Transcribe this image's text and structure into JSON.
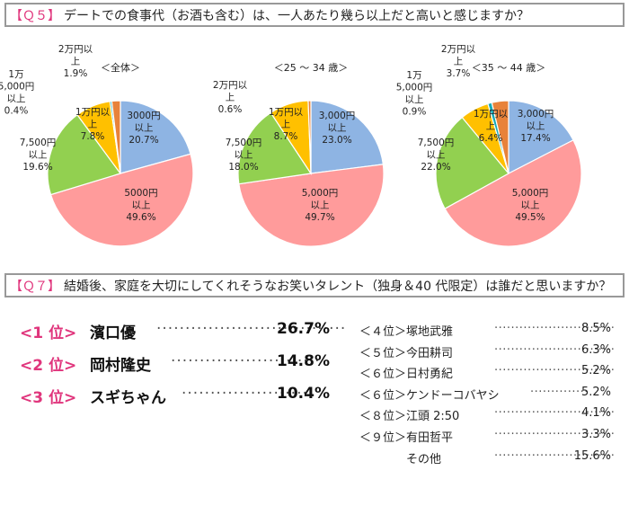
{
  "q5": {
    "qnum": "【Ｑ５】",
    "question": "デートでの食事代（お酒も含む）は、一人あたり幾ら以上だと高いと感じますか？"
  },
  "q7": {
    "qnum": "【Ｑ７】",
    "question": "結婚後、家庭を大切にしてくれそうなお笑いタレント（独身＆40 代限定）は誰だと思いますか？"
  },
  "chart_data": [
    {
      "type": "pie",
      "title": "＜全体＞",
      "slices": [
        {
          "label": [
            "3000円",
            "以上"
          ],
          "value": 20.7,
          "value_text": "20.7%",
          "color": "#8eb4e3"
        },
        {
          "label": [
            "5000円",
            "以上"
          ],
          "value": 49.6,
          "value_text": "49.6%",
          "color": "#ff9b9b"
        },
        {
          "label": [
            "7,500円",
            "以上"
          ],
          "value": 19.6,
          "value_text": "19.6%",
          "color": "#92d050"
        },
        {
          "label": [
            "1万円以",
            "上"
          ],
          "value": 7.8,
          "value_text": "7.8%",
          "color": "#ffc000"
        },
        {
          "label": [
            "1万",
            "5,000円",
            "以上"
          ],
          "value": 0.4,
          "value_text": "0.4%",
          "color": "#17a9b6"
        },
        {
          "label": [
            "2万円以",
            "上"
          ],
          "value": 1.9,
          "value_text": "1.9%",
          "color": "#e8823a"
        }
      ]
    },
    {
      "type": "pie",
      "title": "＜25 ～ 34 歳＞",
      "slices": [
        {
          "label": [
            "3,000円",
            "以上"
          ],
          "value": 23.0,
          "value_text": "23.0%",
          "color": "#8eb4e3"
        },
        {
          "label": [
            "5,000円",
            "以上"
          ],
          "value": 49.7,
          "value_text": "49.7%",
          "color": "#ff9b9b"
        },
        {
          "label": [
            "7,500円",
            "以上"
          ],
          "value": 18.0,
          "value_text": "18.0%",
          "color": "#92d050"
        },
        {
          "label": [
            "1万円以",
            "上"
          ],
          "value": 8.7,
          "value_text": "8.7%",
          "color": "#ffc000"
        },
        {
          "label": [
            "2万円以",
            "上"
          ],
          "value": 0.6,
          "value_text": "0.6%",
          "color": "#e8823a"
        }
      ]
    },
    {
      "type": "pie",
      "title": "＜35 ～ 44 歳＞",
      "slices": [
        {
          "label": [
            "3,000円",
            "以上"
          ],
          "value": 17.4,
          "value_text": "17.4%",
          "color": "#8eb4e3"
        },
        {
          "label": [
            "5,000円",
            "以上"
          ],
          "value": 49.5,
          "value_text": "49.5%",
          "color": "#ff9b9b"
        },
        {
          "label": [
            "7,500円",
            "以上"
          ],
          "value": 22.0,
          "value_text": "22.0%",
          "color": "#92d050"
        },
        {
          "label": [
            "1万円以",
            "上"
          ],
          "value": 6.4,
          "value_text": "6.4%",
          "color": "#ffc000"
        },
        {
          "label": [
            "1万",
            "5,000円",
            "以上"
          ],
          "value": 0.9,
          "value_text": "0.9%",
          "color": "#17a9b6"
        },
        {
          "label": [
            "2万円以",
            "上"
          ],
          "value": 3.7,
          "value_text": "3.7%",
          "color": "#e8823a"
        }
      ]
    }
  ],
  "ranking_top": [
    {
      "rank": "<1 位>",
      "name": "濱口優",
      "dots": "·································",
      "percent": "26.7%"
    },
    {
      "rank": "<2 位>",
      "name": "岡村隆史",
      "dots": "··························",
      "percent": "14.8%"
    },
    {
      "rank": "<3 位>",
      "name": "スギちゃん",
      "dots": "······················",
      "percent": "10.4%"
    }
  ],
  "ranking_rest": [
    {
      "rank": "＜４位＞塚地武雅",
      "dots": "·····························",
      "percent": "8.5%"
    },
    {
      "rank": "＜５位＞今田耕司",
      "dots": "·····························",
      "percent": "6.3%"
    },
    {
      "rank": "＜６位＞日村勇紀",
      "dots": "·····························",
      "percent": "5.2%"
    },
    {
      "rank": "＜６位＞ケンドーコバヤシ",
      "dots": "··············",
      "percent": "5.2%"
    },
    {
      "rank": "＜８位＞江頭 2:50",
      "dots": "·····························",
      "percent": "4.1%"
    },
    {
      "rank": "＜９位＞有田哲平",
      "dots": "·····························",
      "percent": "3.3%"
    },
    {
      "rank": "　　　　その他",
      "dots": "·····························",
      "percent": "15.6%"
    }
  ]
}
